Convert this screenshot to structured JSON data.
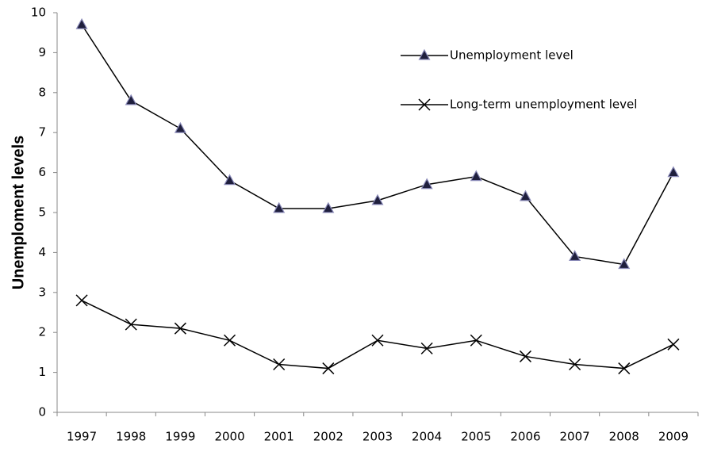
{
  "chart_data": {
    "type": "line",
    "ylabel": "Unemploment levels",
    "categories": [
      "1997",
      "1998",
      "1999",
      "2000",
      "2001",
      "2002",
      "2003",
      "2004",
      "2005",
      "2006",
      "2007",
      "2008",
      "2009"
    ],
    "series": [
      {
        "name": "Unemployment level",
        "color": "#000000",
        "marker": "triangle",
        "marker_color": "#1f1f3d",
        "values": [
          9.7,
          7.8,
          7.1,
          5.8,
          5.1,
          5.1,
          5.3,
          5.7,
          5.9,
          5.4,
          3.9,
          3.7,
          6.0
        ]
      },
      {
        "name": "Long-term unemployment level",
        "color": "#000000",
        "marker": "x",
        "marker_color": "#000000",
        "values": [
          2.8,
          2.2,
          2.1,
          1.8,
          1.2,
          1.1,
          1.8,
          1.6,
          1.8,
          1.4,
          1.2,
          1.1,
          1.7
        ]
      }
    ],
    "ylim": [
      0,
      10
    ],
    "yticks": [
      0,
      1,
      2,
      3,
      4,
      5,
      6,
      7,
      8,
      9,
      10
    ],
    "grid": false,
    "legend": "upper right"
  }
}
